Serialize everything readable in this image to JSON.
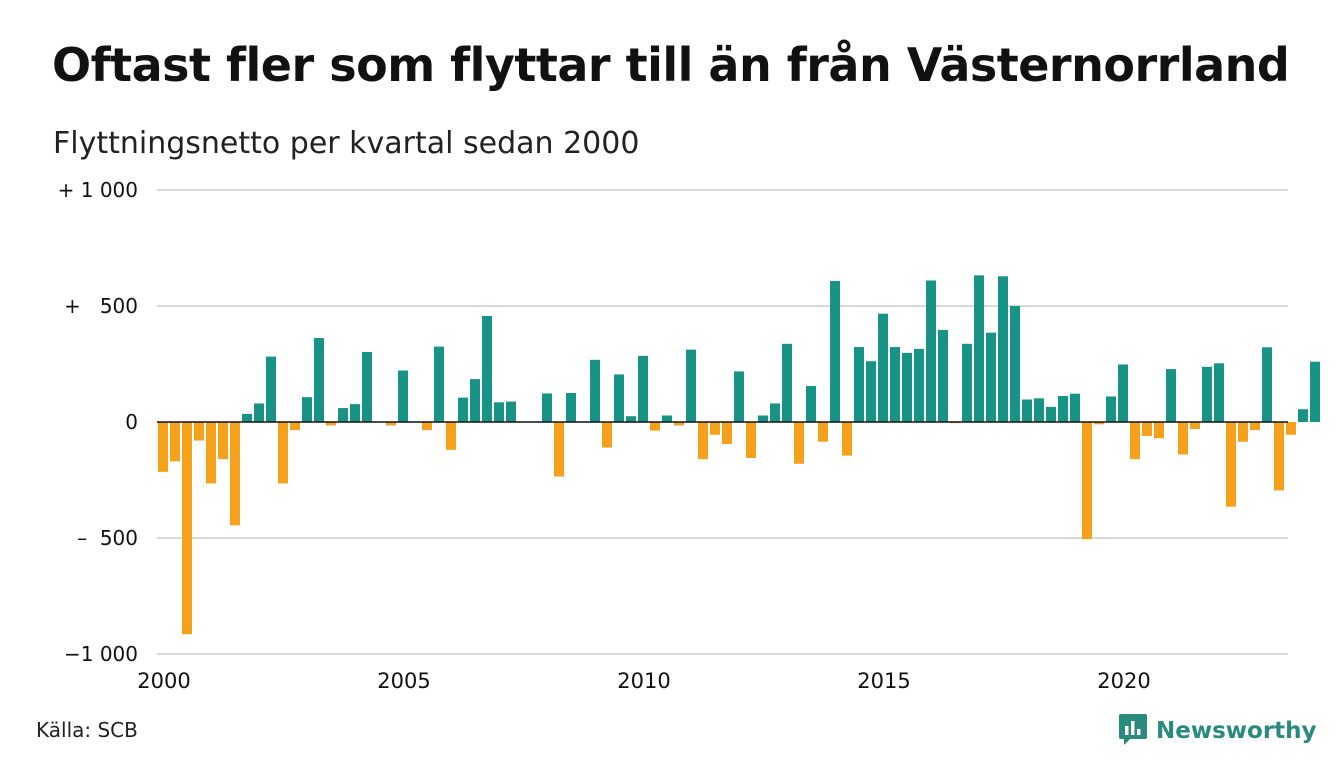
{
  "title": "Oftast fler som flyttar till än från Västernorrland",
  "subtitle": "Flyttningsnetto per kvartal sedan 2000",
  "source": "Källa: SCB",
  "brand": {
    "name": "Newsworthy",
    "icon": "newsworthy-chart-logo-icon",
    "color": "#2a8a7e"
  },
  "colors": {
    "positive": "#179485",
    "negative": "#f5a11b",
    "grid": "#d9d9d9",
    "zero_line": "#111111"
  },
  "chart_data": {
    "type": "bar",
    "title": "Oftast fler som flyttar till än från Västernorrland",
    "subtitle": "Flyttningsnetto per kvartal sedan 2000",
    "x_start": "2000-Q1",
    "frequency": "quarterly",
    "ylim": [
      -1000,
      1000
    ],
    "y_ticks": [
      {
        "value": 1000,
        "label": "+ 1 000"
      },
      {
        "value": 500,
        "label": "+   500"
      },
      {
        "value": 0,
        "label": "0"
      },
      {
        "value": -500,
        "label": "–  500"
      },
      {
        "value": -1000,
        "label": "−1 000"
      }
    ],
    "x_ticks": [
      "2000",
      "2005",
      "2010",
      "2015",
      "2020"
    ],
    "grid": true,
    "values": [
      -215,
      -170,
      -915,
      -80,
      -265,
      -160,
      -445,
      35,
      80,
      282,
      -265,
      -35,
      107,
      362,
      -15,
      60,
      77,
      302,
      0,
      -15,
      222,
      0,
      -35,
      325,
      -120,
      105,
      185,
      457,
      85,
      88,
      0,
      0,
      123,
      -235,
      125,
      0,
      268,
      -110,
      205,
      25,
      285,
      -37,
      28,
      -15,
      312,
      -160,
      -55,
      -95,
      218,
      -155,
      28,
      80,
      337,
      -180,
      155,
      -85,
      608,
      -145,
      323,
      262,
      467,
      323,
      298,
      315,
      610,
      397,
      -5,
      337,
      632,
      385,
      628,
      500,
      97,
      102,
      65,
      112,
      122,
      -505,
      -10,
      110,
      248,
      -160,
      -60,
      -70,
      228,
      -140,
      -30,
      238,
      253,
      -365,
      -85,
      -35,
      322,
      -295,
      -55,
      55,
      260
    ]
  }
}
